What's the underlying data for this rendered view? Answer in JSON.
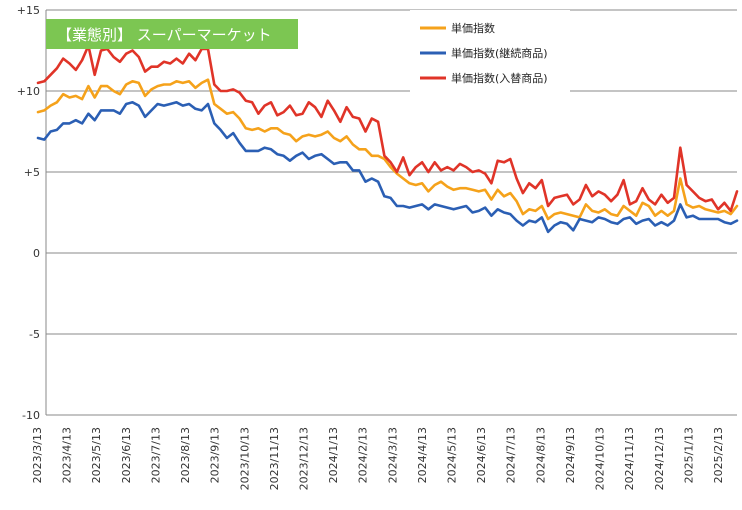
{
  "chart_data": {
    "type": "line",
    "title": "【業態別】 スーパーマーケット",
    "title_bg_color": "#7cc652",
    "xlabel": "",
    "ylabel": "",
    "ylim": [
      -10,
      15
    ],
    "yticks": [
      {
        "value": 15,
        "label": "+15"
      },
      {
        "value": 10,
        "label": "+10"
      },
      {
        "value": 5,
        "label": "+5"
      },
      {
        "value": 0,
        "label": "0"
      },
      {
        "value": -5,
        "label": "-5"
      },
      {
        "value": -10,
        "label": "-10"
      }
    ],
    "grid": "horizontal",
    "legend_position": "top-right",
    "x_tick_labels": [
      "2023/3/13",
      "2023/4/13",
      "2023/5/13",
      "2023/6/13",
      "2023/7/13",
      "2023/8/13",
      "2023/9/13",
      "2023/10/13",
      "2023/11/13",
      "2023/12/13",
      "2024/1/13",
      "2024/2/13",
      "2024/3/13",
      "2024/4/13",
      "2024/5/13",
      "2024/6/13",
      "2024/7/13",
      "2024/8/13",
      "2024/9/13",
      "2024/10/13",
      "2024/11/13",
      "2024/12/13",
      "2025/1/13",
      "2025/2/13"
    ],
    "series": [
      {
        "name": "単価指数",
        "color": "#f5a21b",
        "values": [
          8.7,
          8.8,
          9.1,
          9.3,
          9.8,
          9.6,
          9.7,
          9.5,
          10.3,
          9.6,
          10.3,
          10.3,
          10.0,
          9.8,
          10.4,
          10.6,
          10.5,
          9.7,
          10.1,
          10.3,
          10.4,
          10.4,
          10.6,
          10.5,
          10.6,
          10.2,
          10.5,
          10.7,
          9.2,
          8.9,
          8.6,
          8.7,
          8.3,
          7.7,
          7.6,
          7.7,
          7.5,
          7.7,
          7.7,
          7.4,
          7.3,
          6.9,
          7.2,
          7.3,
          7.2,
          7.3,
          7.5,
          7.1,
          6.9,
          7.2,
          6.7,
          6.4,
          6.4,
          6.0,
          6.0,
          5.8,
          5.3,
          4.9,
          4.6,
          4.3,
          4.2,
          4.3,
          3.8,
          4.2,
          4.4,
          4.1,
          3.9,
          4.0,
          4.0,
          3.9,
          3.8,
          3.9,
          3.3,
          3.9,
          3.5,
          3.7,
          3.2,
          2.4,
          2.7,
          2.6,
          2.9,
          2.1,
          2.4,
          2.5,
          2.4,
          2.3,
          2.2,
          3.0,
          2.6,
          2.5,
          2.7,
          2.4,
          2.3,
          2.9,
          2.6,
          2.3,
          3.1,
          2.9,
          2.3,
          2.6,
          2.3,
          2.6,
          4.6,
          3.0,
          2.8,
          2.9,
          2.7,
          2.6,
          2.5,
          2.6,
          2.4,
          2.9
        ]
      },
      {
        "name": "単価指数(継続商品)",
        "color": "#2b5fb4",
        "values": [
          7.1,
          7.0,
          7.5,
          7.6,
          8.0,
          8.0,
          8.2,
          8.0,
          8.6,
          8.2,
          8.8,
          8.8,
          8.8,
          8.6,
          9.2,
          9.3,
          9.1,
          8.4,
          8.8,
          9.2,
          9.1,
          9.2,
          9.3,
          9.1,
          9.2,
          8.9,
          8.8,
          9.2,
          8.0,
          7.6,
          7.1,
          7.4,
          6.8,
          6.3,
          6.3,
          6.3,
          6.5,
          6.4,
          6.1,
          6.0,
          5.7,
          6.0,
          6.2,
          5.8,
          6.0,
          6.1,
          5.8,
          5.5,
          5.6,
          5.6,
          5.1,
          5.1,
          4.4,
          4.6,
          4.4,
          3.5,
          3.4,
          2.9,
          2.9,
          2.8,
          2.9,
          3.0,
          2.7,
          3.0,
          2.9,
          2.8,
          2.7,
          2.8,
          2.9,
          2.5,
          2.6,
          2.8,
          2.3,
          2.7,
          2.5,
          2.4,
          2.0,
          1.7,
          2.0,
          1.9,
          2.2,
          1.3,
          1.7,
          1.9,
          1.8,
          1.4,
          2.1,
          2.0,
          1.9,
          2.2,
          2.1,
          1.9,
          1.8,
          2.1,
          2.2,
          1.8,
          2.0,
          2.1,
          1.7,
          1.9,
          1.7,
          2.0,
          3.0,
          2.2,
          2.3,
          2.1,
          2.1,
          2.1,
          2.1,
          1.9,
          1.8,
          2.0
        ]
      },
      {
        "name": "単価指数(入替商品)",
        "color": "#e03428",
        "values": [
          10.5,
          10.6,
          11.0,
          11.4,
          12.0,
          11.7,
          11.3,
          11.9,
          12.8,
          11.0,
          12.5,
          12.6,
          12.1,
          11.8,
          12.3,
          12.5,
          12.1,
          11.2,
          11.5,
          11.5,
          11.8,
          11.7,
          12.0,
          11.7,
          12.3,
          11.9,
          12.6,
          12.6,
          10.4,
          10.0,
          10.0,
          10.1,
          9.9,
          9.4,
          9.3,
          8.6,
          9.1,
          9.3,
          8.5,
          8.7,
          9.1,
          8.5,
          8.6,
          9.3,
          9.0,
          8.4,
          9.4,
          8.8,
          8.1,
          9.0,
          8.4,
          8.3,
          7.5,
          8.3,
          8.1,
          6.0,
          5.6,
          5.0,
          5.9,
          4.8,
          5.3,
          5.6,
          5.0,
          5.6,
          5.1,
          5.3,
          5.1,
          5.5,
          5.3,
          5.0,
          5.1,
          4.9,
          4.3,
          5.7,
          5.6,
          5.8,
          4.6,
          3.7,
          4.3,
          4.0,
          4.5,
          2.9,
          3.4,
          3.5,
          3.6,
          3.0,
          3.3,
          4.2,
          3.5,
          3.8,
          3.6,
          3.2,
          3.6,
          4.5,
          3.0,
          3.2,
          4.0,
          3.3,
          3.0,
          3.6,
          3.1,
          3.4,
          6.5,
          4.2,
          3.8,
          3.4,
          3.2,
          3.3,
          2.7,
          3.1,
          2.6,
          3.8
        ]
      }
    ]
  }
}
